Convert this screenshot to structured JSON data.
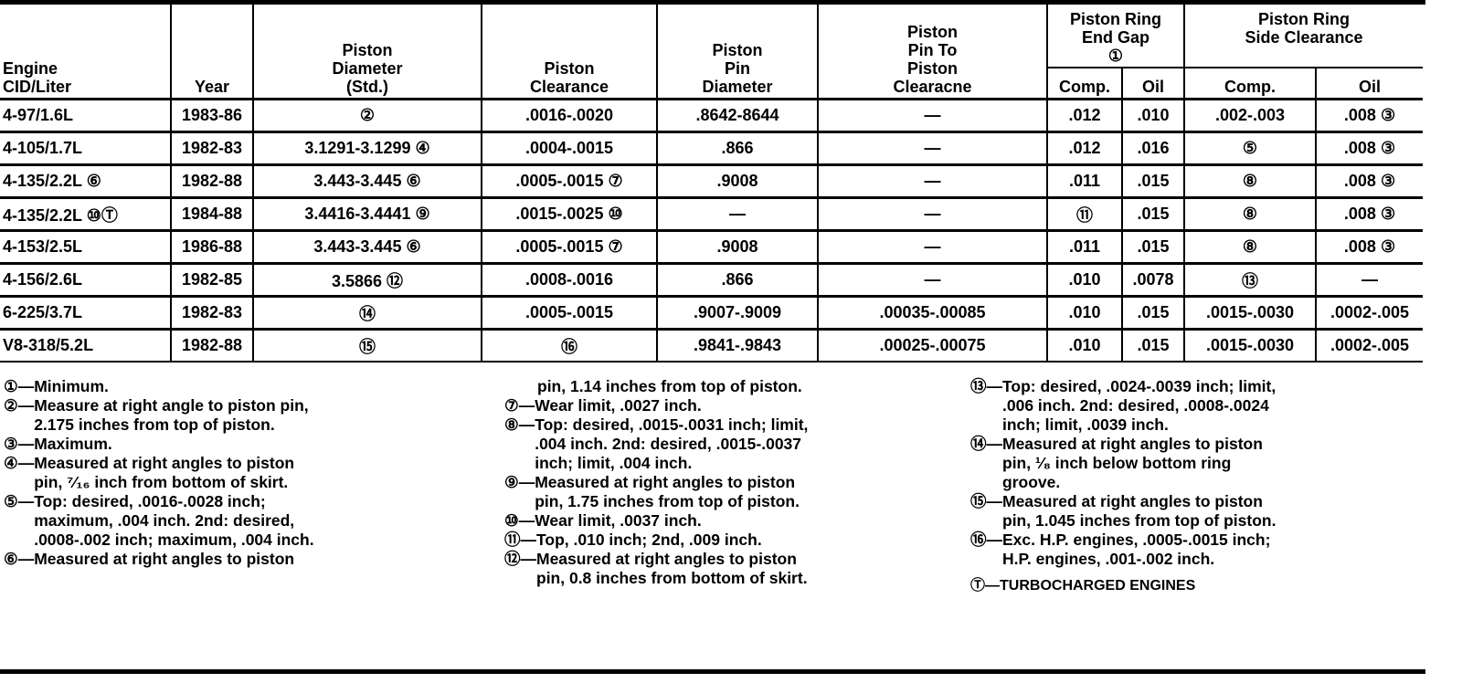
{
  "table": {
    "headers": {
      "engine": "Engine\nCID/Liter",
      "year": "Year",
      "piston_diameter": "Piston\nDiameter\n(Std.)",
      "piston_clearance": "Piston\nClearance",
      "pin_diameter": "Piston\nPin\nDiameter",
      "pin_to_piston": "Piston\nPin To\nPiston\nClearacne",
      "end_gap": "Piston Ring\nEnd Gap\n①",
      "side_clearance": "Piston Ring\nSide Clearance",
      "comp": "Comp.",
      "oil": "Oil"
    },
    "rows": [
      [
        "4-97/1.6L",
        "1983-86",
        "②",
        ".0016-.0020",
        ".8642-8644",
        "—",
        ".012",
        ".010",
        ".002-.003",
        ".008 ③"
      ],
      [
        "4-105/1.7L",
        "1982-83",
        "3.1291-3.1299 ④",
        ".0004-.0015",
        ".866",
        "—",
        ".012",
        ".016",
        "⑤",
        ".008 ③"
      ],
      [
        "4-135/2.2L ⑥",
        "1982-88",
        "3.443-3.445 ⑥",
        ".0005-.0015 ⑦",
        ".9008",
        "—",
        ".011",
        ".015",
        "⑧",
        ".008 ③"
      ],
      [
        "4-135/2.2L ⑩Ⓣ",
        "1984-88",
        "3.4416-3.4441 ⑨",
        ".0015-.0025 ⑩",
        "—",
        "—",
        "⑪",
        ".015",
        "⑧",
        ".008 ③"
      ],
      [
        "4-153/2.5L",
        "1986-88",
        "3.443-3.445 ⑥",
        ".0005-.0015 ⑦",
        ".9008",
        "—",
        ".011",
        ".015",
        "⑧",
        ".008 ③"
      ],
      [
        "4-156/2.6L",
        "1982-85",
        "3.5866 ⑫",
        ".0008-.0016",
        ".866",
        "—",
        ".010",
        ".0078",
        "⑬",
        "—"
      ],
      [
        "6-225/3.7L",
        "1982-83",
        "⑭",
        ".0005-.0015",
        ".9007-.9009",
        ".00035-.00085",
        ".010",
        ".015",
        ".0015-.0030",
        ".0002-.005"
      ],
      [
        "V8-318/5.2L",
        "1982-88",
        "⑮",
        "⑯",
        ".9841-.9843",
        ".00025-.00075",
        ".010",
        ".015",
        ".0015-.0030",
        ".0002-.005"
      ]
    ]
  },
  "footnotes": {
    "col1": [
      {
        "mark": "①—",
        "text": "Minimum."
      },
      {
        "mark": "②—",
        "text": "Measure at right angle to piston pin,\n2.175 inches from top of piston."
      },
      {
        "mark": "③—",
        "text": "Maximum."
      },
      {
        "mark": "④—",
        "text": "Measured at right angles to piston\npin, ⁷⁄₁₆ inch from bottom of skirt."
      },
      {
        "mark": "⑤—",
        "text": "Top: desired, .0016-.0028 inch;\nmaximum, .004 inch. 2nd: desired,\n.0008-.002 inch; maximum, .004 inch."
      },
      {
        "mark": "⑥—",
        "text": "Measured at right angles to piston"
      }
    ],
    "col2_continuation": "pin, 1.14 inches from top of piston.",
    "col2": [
      {
        "mark": "⑦—",
        "text": "Wear limit, .0027 inch."
      },
      {
        "mark": "⑧—",
        "text": "Top: desired, .0015-.0031 inch; limit,\n.004 inch. 2nd: desired, .0015-.0037\ninch; limit, .004 inch."
      },
      {
        "mark": "⑨—",
        "text": "Measured at right angles to piston\npin, 1.75 inches from top of piston."
      },
      {
        "mark": "⑩—",
        "text": "Wear limit, .0037 inch."
      },
      {
        "mark": "⑪—",
        "text": "Top, .010 inch; 2nd, .009 inch."
      },
      {
        "mark": "⑫—",
        "text": "Measured at right angles to piston\npin, 0.8 inches from bottom of skirt."
      }
    ],
    "col3": [
      {
        "mark": "⑬—",
        "text": "Top: desired, .0024-.0039 inch; limit,\n.006 inch. 2nd: desired, .0008-.0024\ninch; limit, .0039 inch."
      },
      {
        "mark": "⑭—",
        "text": "Measured at right angles to piston\npin, ¹⁄₈ inch below bottom ring\ngroove."
      },
      {
        "mark": "⑮—",
        "text": "Measured at right angles to piston\npin, 1.045 inches from top of piston."
      },
      {
        "mark": "⑯—",
        "text": "Exc. H.P. engines, .0005-.0015 inch;\nH.P. engines, .001-.002 inch."
      }
    ],
    "turbo": "Ⓣ—TURBOCHARGED ENGINES"
  }
}
